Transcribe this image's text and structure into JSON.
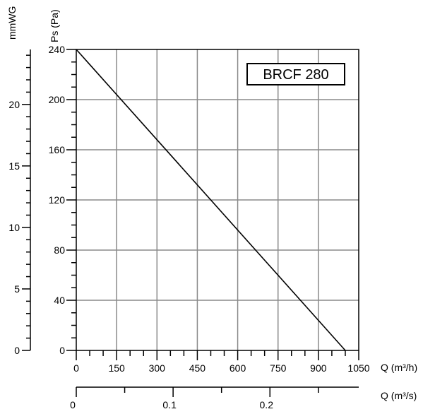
{
  "chart_data": {
    "type": "line",
    "title": "BRCF 280",
    "xlabel": "Q (m³/h)",
    "ylabel": "Ps (Pa)",
    "xlim": [
      0,
      1050
    ],
    "ylim": [
      0,
      240
    ],
    "x_ticks": [
      "0",
      "150",
      "300",
      "450",
      "600",
      "750",
      "900",
      "1050"
    ],
    "y_ticks": [
      "0",
      "40",
      "80",
      "120",
      "160",
      "200",
      "240"
    ],
    "grid": true,
    "series": [
      {
        "x": [
          0,
          1000
        ],
        "y": [
          240,
          0
        ]
      }
    ],
    "secondary_y_axis": {
      "label": "mmWG",
      "range": [
        0,
        24.47
      ],
      "ticks": [
        "0",
        "5",
        "10",
        "15",
        "20"
      ]
    },
    "secondary_x_axis": {
      "label": "Q (m³/s)",
      "range": [
        0,
        0.2917
      ],
      "ticks": [
        "0",
        "0.1",
        "0.2"
      ]
    }
  }
}
